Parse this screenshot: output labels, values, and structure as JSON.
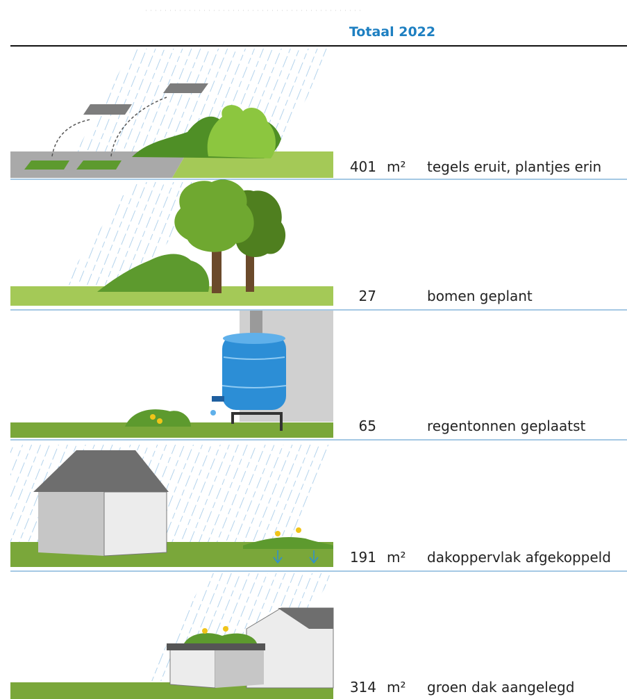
{
  "header": {
    "title": "Totaal 2022"
  },
  "rows": [
    {
      "value": 401,
      "unit": "m²",
      "label": "tegels eruit, plantjes erin"
    },
    {
      "value": 27,
      "label": "bomen geplant"
    },
    {
      "value": 65,
      "label": "regentonnen geplaatst"
    },
    {
      "value": 191,
      "unit": "m²",
      "label": "dakoppervlak afgekoppeld"
    },
    {
      "value": 314,
      "unit": "m²",
      "label": "groen dak aangelegd"
    }
  ]
}
